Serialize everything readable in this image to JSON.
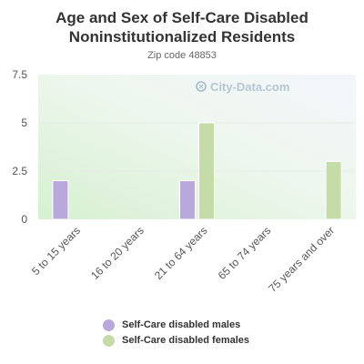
{
  "chart_data": {
    "type": "bar",
    "title": "Age and Sex of Self-Care Disabled Noninstitutionalized Residents",
    "subtitle": "Zip code 48853",
    "watermark": "City-Data.com",
    "categories": [
      "5 to 15 years",
      "16 to 20 years",
      "21 to 64 years",
      "65 to 74 years",
      "75 years and over"
    ],
    "series": [
      {
        "name": "Self-Care disabled males",
        "values": [
          2,
          0,
          2,
          0,
          0
        ],
        "color": "#b9a8dc"
      },
      {
        "name": "Self-Care disabled females",
        "values": [
          0,
          0,
          5,
          0,
          3
        ],
        "color": "#c5dba8"
      }
    ],
    "y_ticks": [
      "0",
      "2.5",
      "5",
      "7.5"
    ],
    "ylim": [
      0,
      7.5
    ],
    "grid": true,
    "legend_position": "bottom"
  }
}
